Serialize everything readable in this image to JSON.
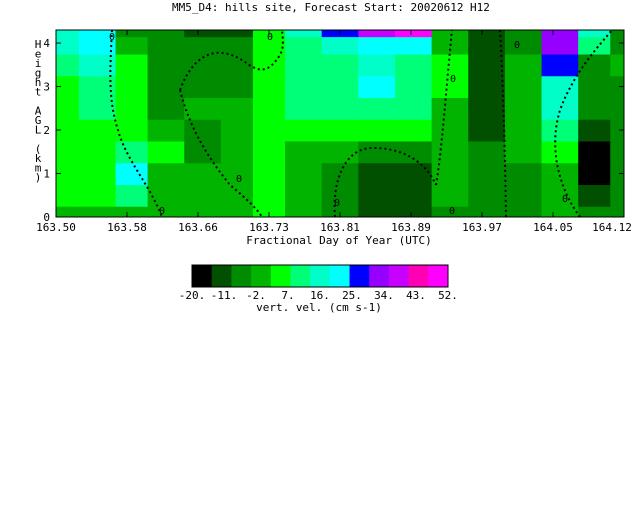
{
  "chart_data": {
    "type": "heatmap",
    "title": "MM5_D4: hills site,  Forecast Start: 20020612 H12",
    "xlabel": "Fractional Day of Year (UTC)",
    "ylabel": "Height AGL (km)",
    "x_ticks": [
      "163.50",
      "163.58",
      "163.66",
      "163.73",
      "163.81",
      "163.89",
      "163.97",
      "164.05",
      "164.12"
    ],
    "y_ticks": [
      "0",
      "1",
      "2",
      "3",
      "4"
    ],
    "xlim": [
      163.5,
      164.12
    ],
    "ylim": [
      0,
      4.3
    ],
    "contour_labels": [
      "0",
      "0",
      "0",
      "0",
      "0",
      "0",
      "0",
      "0",
      "0"
    ],
    "colorbar": {
      "label": "vert. vel. (cm s-1)",
      "tick_labels": [
        "-20.",
        "-11.",
        "-2.",
        "7.",
        "16.",
        "25.",
        "34.",
        "43.",
        "52."
      ],
      "levels": [
        -20,
        -15.5,
        -11,
        -6.5,
        -2,
        2.5,
        7,
        11.5,
        16,
        20.5,
        25,
        29.5,
        34,
        38.5,
        43,
        47.5,
        52
      ],
      "colors": [
        "#000000",
        "#005000",
        "#008c00",
        "#00b400",
        "#00ff00",
        "#00ff78",
        "#00ffc8",
        "#00ffff",
        "#0000ff",
        "#9600ff",
        "#c800ff",
        "#ff00b4",
        "#ff00ff"
      ]
    },
    "grid": false,
    "x": [
      163.5,
      163.55,
      163.58,
      163.62,
      163.66,
      163.7,
      163.73,
      163.77,
      163.81,
      163.85,
      163.89,
      163.93,
      163.97,
      164.01,
      164.05,
      164.09,
      164.12
    ],
    "y": [
      0,
      0.5,
      1.0,
      1.5,
      2.0,
      2.5,
      3.0,
      3.5,
      4.0,
      4.3
    ],
    "z": [
      [
        2,
        2,
        0,
        -3,
        -3,
        0,
        3,
        2,
        -6,
        -12,
        -10,
        -4,
        -5,
        -6,
        -3,
        -8,
        -4
      ],
      [
        3,
        5,
        8,
        -2,
        -2,
        2,
        4,
        2,
        -6,
        -14,
        -11,
        -3,
        -5,
        -5,
        -2,
        -12,
        -5
      ],
      [
        4,
        6,
        20,
        2,
        -3,
        2,
        4,
        2,
        -5,
        -14,
        -12,
        -3,
        -6,
        -4,
        0,
        -17,
        -6
      ],
      [
        3,
        4,
        10,
        4,
        -4,
        2,
        3,
        1,
        -2,
        -8,
        -6,
        -2,
        -7,
        -3,
        4,
        -15,
        -5
      ],
      [
        4,
        4,
        6,
        2,
        -8,
        2,
        3,
        3,
        5,
        6,
        4,
        2,
        -10,
        -3,
        10,
        -9,
        -6
      ],
      [
        6,
        8,
        4,
        -4,
        -2,
        2,
        4,
        8,
        12,
        10,
        8,
        2,
        -12,
        -3,
        15,
        -7,
        -5
      ],
      [
        7,
        12,
        5,
        -6,
        -4,
        -6,
        5,
        10,
        13,
        20,
        12,
        3,
        -12,
        -3,
        18,
        -5,
        -4
      ],
      [
        10,
        15,
        4,
        -6,
        -6,
        -6,
        3,
        10,
        12,
        14,
        12,
        3,
        -10,
        -3,
        27,
        -6,
        -3
      ],
      [
        14,
        20,
        -3,
        -6,
        -8,
        -7,
        5,
        12,
        14,
        24,
        20,
        2,
        -14,
        -4,
        33,
        12,
        -4
      ],
      [
        15,
        22,
        -4,
        -6,
        -11,
        -10,
        3,
        14,
        28,
        40,
        48,
        2,
        -14,
        -4,
        35,
        14,
        -4
      ]
    ]
  }
}
